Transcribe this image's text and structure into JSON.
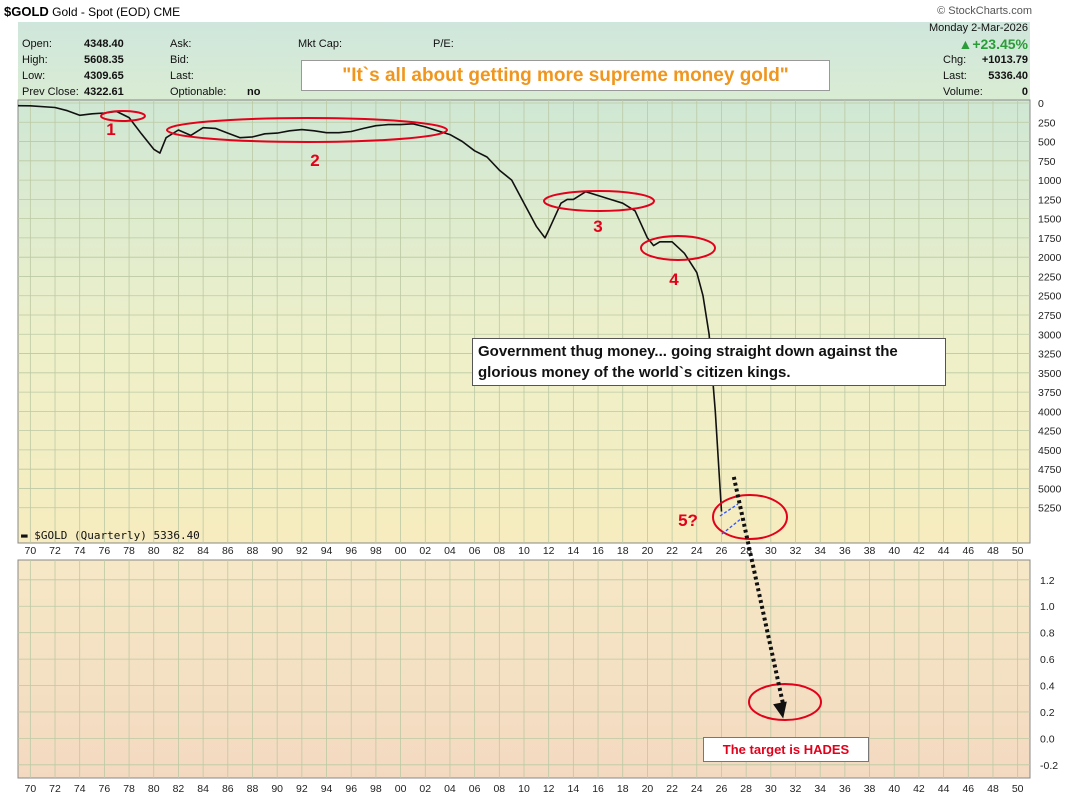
{
  "header": {
    "symbol": "$GOLD",
    "name": "Gold - Spot (EOD)",
    "exchange": "CME",
    "source": "© StockCharts.com",
    "date": "Monday  2-Mar-2026",
    "change_pct": "▲+23.45%",
    "chg_label": "Chg:",
    "chg_value": "+1013.79",
    "last_label": "Last:",
    "last_value": "5336.40",
    "volume_label": "Volume:",
    "volume_value": "0",
    "open_label": "Open:",
    "open_value": "4348.40",
    "high_label": "High:",
    "high_value": "5608.35",
    "low_label": "Low:",
    "low_value": "4309.65",
    "prev_label": "Prev Close:",
    "prev_value": "4322.61",
    "ask_label": "Ask:",
    "bid_label": "Bid:",
    "last2_label": "Last:",
    "optionable_label": "Optionable:",
    "optionable_value": "no",
    "mktcap_label": "Mkt Cap:",
    "pe_label": "P/E:"
  },
  "annotations": {
    "quote": "\"It`s all about getting more supreme money gold\"",
    "callout": "Government thug money... going straight down against the glorious money of the world`s citizen kings.",
    "target": "The target is HADES",
    "labels": [
      "1",
      "2",
      "3",
      "4",
      "5?"
    ]
  },
  "colors": {
    "price_line": "#111111",
    "ellipse": "#e3001b",
    "label_red": "#e3001b",
    "quote_orange": "#f0961e",
    "arrow": "#111111",
    "dashed_blue": "#3050ff",
    "gridline": "#bcc9a4"
  },
  "chart_data": [
    {
      "type": "line",
      "legend": "▬ $GOLD (Quarterly) 5336.40",
      "y_inverted": true,
      "ylim": [
        0,
        5500
      ],
      "yticks": [
        0,
        250,
        500,
        750,
        1000,
        1250,
        1500,
        1750,
        2000,
        2250,
        2500,
        2750,
        3000,
        3250,
        3500,
        3750,
        4000,
        4250,
        4500,
        4750,
        5000,
        5250
      ],
      "xlim": [
        1969,
        2051
      ],
      "x_tick_labels": [
        "70",
        "72",
        "74",
        "76",
        "78",
        "80",
        "82",
        "84",
        "86",
        "88",
        "90",
        "92",
        "94",
        "96",
        "98",
        "00",
        "02",
        "04",
        "06",
        "08",
        "10",
        "12",
        "14",
        "16",
        "18",
        "20",
        "22",
        "24",
        "26",
        "28",
        "30",
        "32",
        "34",
        "36",
        "38",
        "40",
        "42",
        "44",
        "46",
        "48",
        "50"
      ],
      "series": [
        {
          "x": [
            1969,
            1970,
            1972,
            1973,
            1974,
            1975,
            1976,
            1977,
            1978,
            1979,
            1980,
            1980.5,
            1981,
            1982,
            1983,
            1984,
            1985,
            1986,
            1987,
            1988,
            1989,
            1990,
            1991,
            1992,
            1993,
            1994,
            1995,
            1996,
            1997,
            1998,
            1999,
            2000,
            2001,
            2002,
            2003,
            2004,
            2005,
            2006,
            2007,
            2008,
            2009,
            2010,
            2011,
            2011.7,
            2012,
            2013,
            2013.5,
            2014,
            2015,
            2016,
            2017,
            2018,
            2019,
            2020,
            2020.5,
            2021,
            2022,
            2023,
            2024,
            2024.5,
            2025,
            2025.5,
            2026
          ],
          "y": [
            35,
            36,
            58,
            100,
            160,
            140,
            130,
            110,
            190,
            400,
            600,
            650,
            450,
            350,
            420,
            320,
            330,
            390,
            450,
            440,
            400,
            390,
            360,
            345,
            360,
            385,
            385,
            370,
            330,
            295,
            280,
            280,
            270,
            310,
            360,
            410,
            500,
            620,
            700,
            870,
            1000,
            1300,
            1600,
            1750,
            1650,
            1300,
            1250,
            1250,
            1150,
            1200,
            1250,
            1300,
            1400,
            1750,
            1850,
            1800,
            1800,
            1950,
            2200,
            2500,
            3000,
            4000,
            5300
          ]
        }
      ],
      "projection": {
        "from": [
          2027,
          4850
        ],
        "to": [
          2030.5,
          5500
        ]
      }
    },
    {
      "type": "line",
      "ylim": [
        -0.3,
        1.35
      ],
      "yticks": [
        -0.2,
        0.0,
        0.2,
        0.4,
        0.6,
        0.8,
        1.0,
        1.2
      ],
      "ytick_labels": [
        "-0.2",
        "0.0",
        "0.2",
        "0.4",
        "0.6",
        "0.8",
        "1.0",
        "1.2"
      ],
      "xlim": [
        1969,
        2051
      ],
      "x_tick_labels": [
        "70",
        "72",
        "74",
        "76",
        "78",
        "80",
        "82",
        "84",
        "86",
        "88",
        "90",
        "92",
        "94",
        "96",
        "98",
        "00",
        "02",
        "04",
        "06",
        "08",
        "10",
        "12",
        "14",
        "16",
        "18",
        "20",
        "22",
        "24",
        "26",
        "28",
        "30",
        "32",
        "34",
        "36",
        "38",
        "40",
        "42",
        "44",
        "46",
        "48",
        "50"
      ],
      "projection": {
        "from": [
          2028,
          1.35
        ],
        "to": [
          2031,
          0.15
        ]
      }
    }
  ]
}
